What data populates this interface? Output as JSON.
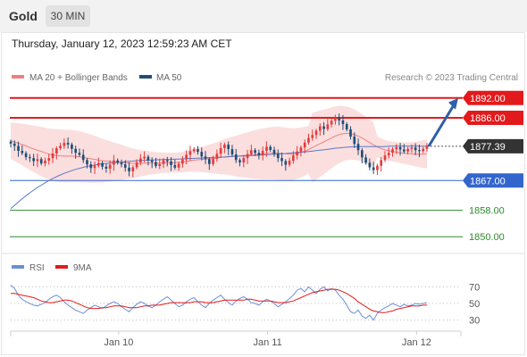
{
  "header": {
    "instrument": "Gold",
    "timeframe": "30 MIN"
  },
  "timestamp": "Thursday, January 12, 2023 12:59:23 AM CET",
  "legend": {
    "bb_label": "MA 20 + Bollinger Bands",
    "ma50_label": "MA 50",
    "credit": "Research © 2023 Trading Central",
    "rsi_label": "RSI",
    "rsi_ma_label": "9MA"
  },
  "colors": {
    "resistance": "#e31a1c",
    "current": "#333333",
    "pivot": "#3366cc",
    "support": "#2e8b2e",
    "bull": "#e23b3b",
    "bear": "#1f4e79",
    "band": "#fbdede",
    "ma20": "#f08080",
    "ma50": "#5a78c8",
    "arrow": "#2f5fa8",
    "rsi": "#6a8fd8",
    "rsi_ma": "#e31a1c"
  },
  "chart_data": [
    {
      "type": "candlestick",
      "title": "Gold 30 MIN",
      "x_ticks": [
        "Jan 10",
        "Jan 11",
        "Jan 12"
      ],
      "ylim": [
        1846,
        1896
      ],
      "levels": [
        {
          "label": "1892.00",
          "value": 1892.0,
          "kind": "resistance"
        },
        {
          "label": "1886.00",
          "value": 1886.0,
          "kind": "resistance"
        },
        {
          "label": "1877.39",
          "value": 1877.39,
          "kind": "current"
        },
        {
          "label": "1867.00",
          "value": 1867.0,
          "kind": "pivot"
        },
        {
          "label": "1858.00",
          "value": 1858.0,
          "kind": "support"
        },
        {
          "label": "1850.00",
          "value": 1850.0,
          "kind": "support"
        }
      ],
      "close": [
        1878.2,
        1877.5,
        1876.0,
        1875.3,
        1874.1,
        1873.8,
        1872.9,
        1873.5,
        1872.2,
        1873.0,
        1873.8,
        1875.2,
        1876.8,
        1877.5,
        1878.4,
        1877.9,
        1876.6,
        1875.4,
        1874.8,
        1873.2,
        1871.9,
        1870.8,
        1871.5,
        1872.3,
        1871.2,
        1870.6,
        1871.8,
        1873.1,
        1872.4,
        1871.9,
        1870.9,
        1869.8,
        1871.0,
        1872.5,
        1873.7,
        1874.2,
        1873.1,
        1872.6,
        1871.4,
        1872.0,
        1873.2,
        1872.8,
        1871.7,
        1870.9,
        1872.1,
        1873.4,
        1874.8,
        1875.9,
        1876.5,
        1875.7,
        1874.3,
        1873.5,
        1872.0,
        1873.6,
        1875.1,
        1876.8,
        1877.9,
        1876.5,
        1874.9,
        1873.2,
        1872.5,
        1873.8,
        1875.0,
        1876.2,
        1875.4,
        1874.6,
        1876.0,
        1877.2,
        1876.3,
        1875.1,
        1873.8,
        1872.9,
        1871.8,
        1873.0,
        1874.6,
        1875.8,
        1877.0,
        1878.5,
        1879.9,
        1880.8,
        1882.1,
        1883.4,
        1882.6,
        1884.0,
        1885.1,
        1886.0,
        1885.2,
        1884.1,
        1882.5,
        1880.3,
        1878.1,
        1876.2,
        1874.0,
        1872.4,
        1871.0,
        1870.2,
        1871.5,
        1873.2,
        1874.6,
        1875.4,
        1876.5,
        1877.1,
        1876.4,
        1875.8,
        1876.6,
        1877.0,
        1876.2,
        1875.9,
        1876.6,
        1877.4
      ],
      "ma20": [
        1879.0,
        1878.7,
        1878.3,
        1877.9,
        1877.5,
        1877.0,
        1876.6,
        1876.2,
        1875.8,
        1875.4,
        1875.0,
        1874.8,
        1874.6,
        1874.5,
        1874.4,
        1874.4,
        1874.4,
        1874.3,
        1874.2,
        1874.0,
        1873.8,
        1873.6,
        1873.4,
        1873.2,
        1873.0,
        1872.9,
        1872.8,
        1872.7,
        1872.6,
        1872.5,
        1872.4,
        1872.3,
        1872.2,
        1872.2,
        1872.2,
        1872.3,
        1872.3,
        1872.3,
        1872.3,
        1872.3,
        1872.4,
        1872.4,
        1872.4,
        1872.4,
        1872.5,
        1872.6,
        1872.8,
        1873.0,
        1873.2,
        1873.3,
        1873.4,
        1873.5,
        1873.6,
        1873.7,
        1873.8,
        1874.0,
        1874.2,
        1874.3,
        1874.4,
        1874.4,
        1874.5,
        1874.6,
        1874.7,
        1874.8,
        1874.9,
        1875.0,
        1875.1,
        1875.2,
        1875.3,
        1875.3,
        1875.3,
        1875.2,
        1875.1,
        1875.0,
        1875.0,
        1875.2,
        1875.5,
        1875.9,
        1876.4,
        1877.0,
        1877.6,
        1878.2,
        1878.7,
        1879.3,
        1879.9,
        1880.5,
        1880.9,
        1881.2,
        1881.3,
        1881.2,
        1880.9,
        1880.5,
        1879.9,
        1879.2,
        1878.5,
        1877.8,
        1877.2,
        1876.7,
        1876.3,
        1876.0,
        1875.8,
        1875.6,
        1875.4,
        1875.3,
        1875.2,
        1875.1,
        1875.0,
        1875.0,
        1875.0,
        1875.1
      ],
      "ma50": [
        1858.5,
        1859.5,
        1860.5,
        1861.5,
        1862.4,
        1863.3,
        1864.1,
        1864.9,
        1865.6,
        1866.3,
        1867.0,
        1867.6,
        1868.2,
        1868.7,
        1869.2,
        1869.6,
        1870.0,
        1870.4,
        1870.7,
        1871.0,
        1871.3,
        1871.5,
        1871.7,
        1871.9,
        1872.1,
        1872.2,
        1872.3,
        1872.4,
        1872.5,
        1872.6,
        1872.7,
        1872.8,
        1872.9,
        1873.0,
        1873.1,
        1873.1,
        1873.2,
        1873.2,
        1873.3,
        1873.3,
        1873.4,
        1873.4,
        1873.4,
        1873.5,
        1873.5,
        1873.6,
        1873.6,
        1873.7,
        1873.7,
        1873.8,
        1873.8,
        1873.9,
        1873.9,
        1874.0,
        1874.0,
        1874.1,
        1874.1,
        1874.2,
        1874.3,
        1874.3,
        1874.4,
        1874.4,
        1874.5,
        1874.6,
        1874.6,
        1874.7,
        1874.8,
        1874.8,
        1874.9,
        1875.0,
        1875.0,
        1875.1,
        1875.2,
        1875.3,
        1875.4,
        1875.5,
        1875.6,
        1875.7,
        1875.8,
        1875.9,
        1876.1,
        1876.2,
        1876.3,
        1876.5,
        1876.6,
        1876.8,
        1876.9,
        1877.0,
        1877.1,
        1877.2,
        1877.2,
        1877.3,
        1877.3,
        1877.3,
        1877.3,
        1877.3,
        1877.3,
        1877.3,
        1877.3,
        1877.4,
        1877.4,
        1877.4,
        1877.4,
        1877.4,
        1877.4,
        1877.4,
        1877.4,
        1877.4,
        1877.4,
        1877.4
      ],
      "projection": {
        "from": 1877.39,
        "to": 1892.0
      }
    },
    {
      "type": "line",
      "title": "RSI",
      "ylim": [
        20,
        80
      ],
      "y_ticks": [
        "70",
        "50",
        "30"
      ],
      "rsi": [
        72,
        68,
        60,
        55,
        52,
        50,
        48,
        47,
        49,
        51,
        55,
        58,
        60,
        57,
        52,
        48,
        45,
        42,
        40,
        38,
        42,
        45,
        48,
        46,
        44,
        47,
        50,
        52,
        50,
        46,
        43,
        40,
        45,
        49,
        52,
        50,
        47,
        45,
        48,
        52,
        55,
        58,
        54,
        50,
        46,
        48,
        52,
        55,
        57,
        52,
        48,
        45,
        50,
        54,
        57,
        60,
        55,
        51,
        48,
        53,
        56,
        58,
        55,
        51,
        50,
        48,
        52,
        55,
        53,
        50,
        46,
        49,
        52,
        56,
        60,
        66,
        68,
        64,
        70,
        66,
        62,
        67,
        70,
        65,
        68,
        66,
        60,
        55,
        48,
        40,
        38,
        42,
        35,
        32,
        36,
        30,
        38,
        42,
        45,
        47,
        50,
        48,
        46,
        49,
        47,
        48,
        50,
        49,
        50,
        51
      ],
      "rsi_ma": [
        62,
        62,
        61,
        60,
        59,
        58,
        57,
        55,
        53,
        52,
        51,
        51,
        52,
        53,
        54,
        54,
        53,
        51,
        49,
        47,
        45,
        44,
        44,
        44,
        45,
        45,
        46,
        47,
        47,
        47,
        46,
        45,
        45,
        45,
        46,
        47,
        47,
        48,
        48,
        48,
        49,
        50,
        51,
        51,
        51,
        51,
        51,
        51,
        52,
        52,
        52,
        51,
        51,
        51,
        52,
        53,
        54,
        54,
        54,
        54,
        54,
        54,
        55,
        55,
        54,
        53,
        53,
        53,
        53,
        52,
        51,
        51,
        51,
        52,
        53,
        55,
        57,
        59,
        61,
        63,
        64,
        65,
        66,
        67,
        67,
        67,
        66,
        64,
        62,
        59,
        56,
        52,
        49,
        46,
        43,
        41,
        40,
        39,
        39,
        40,
        41,
        43,
        44,
        45,
        46,
        47,
        47,
        47,
        48,
        48
      ]
    }
  ]
}
